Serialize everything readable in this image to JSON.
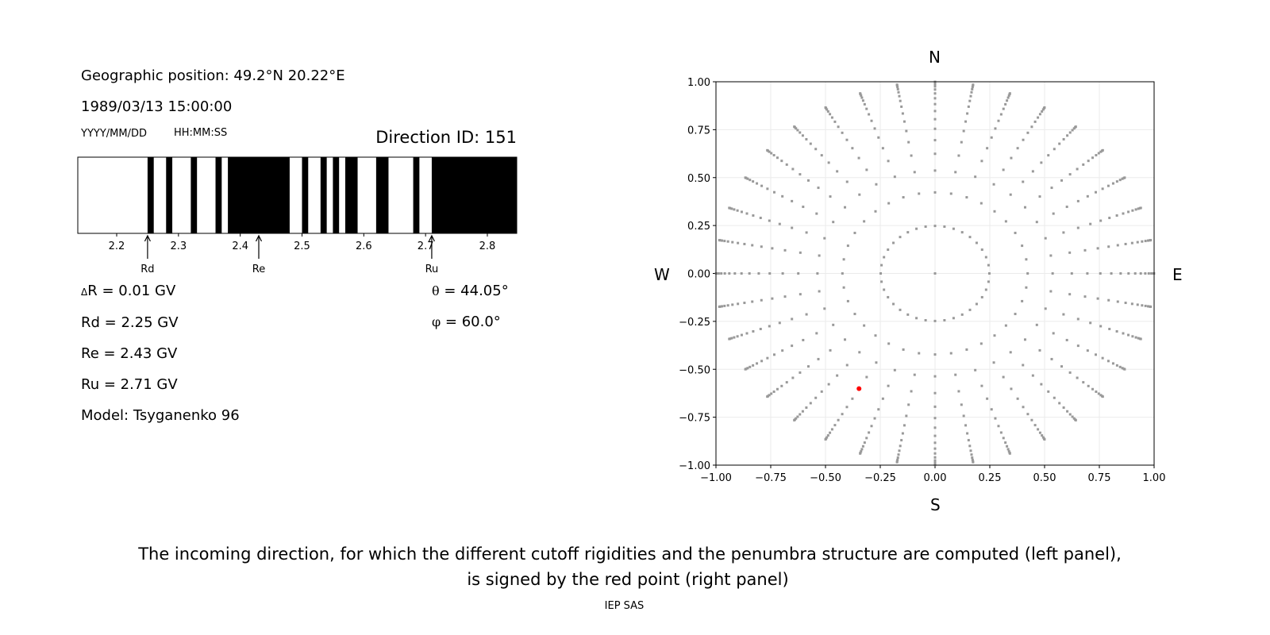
{
  "left_panel": {
    "geo_position": "Geographic position: 49.2°N 20.22°E",
    "datetime": "1989/03/13 15:00:00",
    "date_format": "YYYY/MM/DD",
    "time_format": "HH:MM:SS",
    "direction_id": "Direction ID: 151",
    "delta_r_symbol": "Δ",
    "delta_r": "R = 0.01 GV",
    "rd": "Rd = 2.25 GV",
    "re": "Re = 2.43 GV",
    "ru": "Ru = 2.71 GV",
    "model": "Model: Tsyganenko 96",
    "theta_symbol": "θ",
    "theta": " = 44.05°",
    "phi_symbol": "φ",
    "phi": " = 60.0°"
  },
  "chart_data": [
    {
      "type": "penumbra-bar",
      "xlim": [
        2.137,
        2.848
      ],
      "xticks": [
        "2.2",
        "2.3",
        "2.4",
        "2.5",
        "2.6",
        "2.7",
        "2.8"
      ],
      "forbidden_intervals_black": [
        [
          2.25,
          2.26
        ],
        [
          2.28,
          2.29
        ],
        [
          2.32,
          2.33
        ],
        [
          2.36,
          2.37
        ],
        [
          2.38,
          2.48
        ],
        [
          2.5,
          2.51
        ],
        [
          2.53,
          2.54
        ],
        [
          2.55,
          2.56
        ],
        [
          2.57,
          2.59
        ],
        [
          2.62,
          2.64
        ],
        [
          2.68,
          2.69
        ],
        [
          2.71,
          2.848
        ]
      ],
      "markers": [
        {
          "label": "Rd",
          "value": 2.25
        },
        {
          "label": "Re",
          "value": 2.43
        },
        {
          "label": "Ru",
          "value": 2.71
        }
      ],
      "colors": {
        "forbidden": "#000000",
        "allowed": "#ffffff"
      }
    },
    {
      "type": "scatter",
      "xlim": [
        -1,
        1
      ],
      "ylim": [
        -1,
        1
      ],
      "xticks": [
        "−1.00",
        "−0.75",
        "−0.50",
        "−0.25",
        "0.00",
        "0.25",
        "0.50",
        "0.75",
        "1.00"
      ],
      "yticks": [
        "−1.00",
        "−0.75",
        "−0.50",
        "−0.25",
        "0.00",
        "0.25",
        "0.50",
        "0.75",
        "1.00"
      ],
      "grid": true,
      "compass": {
        "north": "N",
        "south": "S",
        "west": "W",
        "east": "E"
      },
      "grid_directions": {
        "azimuth_step_deg": 10,
        "cos_zenith_step": 0.0625,
        "include_center": true,
        "color": "#999999"
      },
      "highlight_point": {
        "x": -0.347,
        "y": -0.601,
        "theta_deg": 44.05,
        "phi_deg": 60.0,
        "color": "#ff0000"
      }
    }
  ],
  "caption": {
    "line1": "The incoming direction, for which the different cutoff rigidities and the penumbra structure are computed (left panel),",
    "line2": "is signed by the red point (right panel)",
    "credit": "IEP SAS"
  }
}
